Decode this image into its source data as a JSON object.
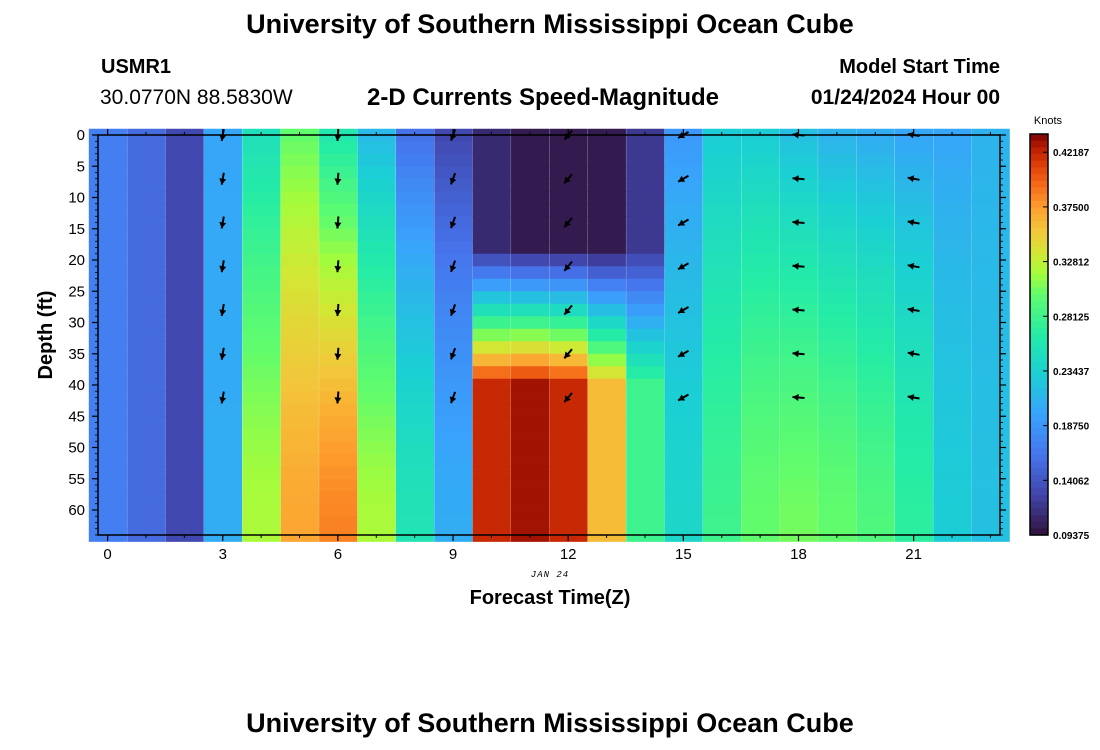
{
  "page": {
    "main_title": "University of Southern Mississippi Ocean Cube",
    "bottom_title": "University of Southern Mississippi Ocean Cube",
    "station_id": "USMR1",
    "station_coords": "30.0770N  88.5830W",
    "subtitle": "2-D Currents Speed-Magnitude",
    "model_start_label": "Model Start Time",
    "model_start_value": "01/24/2024 Hour 00"
  },
  "chart_data": {
    "type": "heatmap",
    "title": "2-D Currents Speed-Magnitude",
    "xlabel": "Forecast Time(Z)",
    "ylabel": "Depth (ft)",
    "date_label": "JAN 24",
    "xlim": [
      0,
      23
    ],
    "ylim": [
      0,
      64
    ],
    "x_ticks": [
      0,
      3,
      6,
      9,
      12,
      15,
      18,
      21
    ],
    "y_ticks": [
      0,
      5,
      10,
      15,
      20,
      25,
      30,
      35,
      40,
      45,
      50,
      55,
      60
    ],
    "colorbar": {
      "label": "Knots",
      "min": 0.09375,
      "max": 0.4375,
      "tick_labels": [
        "0.42187",
        "0.37500",
        "0.32812",
        "0.28125",
        "0.23437",
        "0.18750",
        "0.14062",
        "0.09375"
      ],
      "tick_values": [
        0.421875,
        0.375,
        0.328125,
        0.28125,
        0.234375,
        0.1875,
        0.140625,
        0.09375
      ]
    },
    "hours": [
      0,
      1,
      2,
      3,
      4,
      5,
      6,
      7,
      8,
      9,
      10,
      11,
      12,
      13,
      14,
      15,
      16,
      17,
      18,
      19,
      20,
      21,
      22,
      23
    ],
    "depth_speed_profiles": {
      "0": {
        "surface": 0.17,
        "deep": 0.17
      },
      "1": {
        "surface": 0.155,
        "deep": 0.155
      },
      "2": {
        "surface": 0.13,
        "deep": 0.13
      },
      "3": {
        "surface": 0.2,
        "deep": 0.205
      },
      "4": {
        "surface": 0.25,
        "deep": 0.32
      },
      "5": {
        "surface": 0.3,
        "deep": 0.37
      },
      "6": {
        "surface": 0.26,
        "deep": 0.385
      },
      "7": {
        "surface": 0.215,
        "deep": 0.32
      },
      "8": {
        "surface": 0.16,
        "deep": 0.255
      },
      "9": {
        "surface": 0.13,
        "deep": 0.205
      },
      "10": {
        "surface": 0.11,
        "deep": 0.42
      },
      "11": {
        "surface": 0.1,
        "deep": 0.43
      },
      "12": {
        "surface": 0.1,
        "deep": 0.42
      },
      "13": {
        "surface": 0.1,
        "deep": 0.36
      },
      "14": {
        "surface": 0.12,
        "deep": 0.28
      },
      "15": {
        "surface": 0.19,
        "deep": 0.24
      },
      "16": {
        "surface": 0.23,
        "deep": 0.28
      },
      "17": {
        "surface": 0.23,
        "deep": 0.3
      },
      "18": {
        "surface": 0.22,
        "deep": 0.305
      },
      "19": {
        "surface": 0.21,
        "deep": 0.3
      },
      "20": {
        "surface": 0.205,
        "deep": 0.29
      },
      "21": {
        "surface": 0.2,
        "deep": 0.27
      },
      "22": {
        "surface": 0.2,
        "deep": 0.23
      },
      "23": {
        "surface": 0.21,
        "deep": 0.22
      }
    },
    "arrow_hours": [
      3,
      6,
      9,
      12,
      15,
      18,
      21
    ],
    "arrow_depths": [
      0,
      7,
      14,
      21,
      28,
      35,
      42
    ],
    "arrow_directions_deg": {
      "3": 260,
      "6": 265,
      "9": 250,
      "12": 230,
      "15": 210,
      "18": 175,
      "21": 170
    }
  }
}
